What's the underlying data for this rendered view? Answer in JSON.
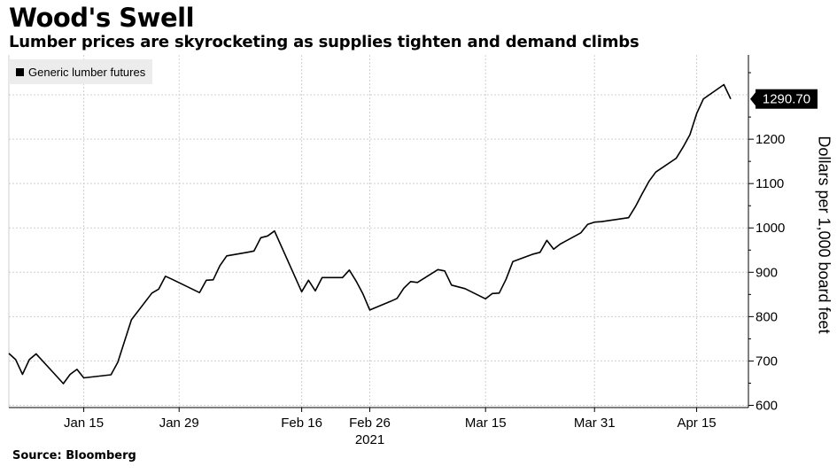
{
  "chart_data": {
    "type": "line",
    "title": "Wood's Swell",
    "subtitle": "Lumber prices are skyrocketing as supplies tighten and demand climbs",
    "source": "Source: Bloomberg",
    "ylabel": "Dollars per 1,000 board feet",
    "xlabel": "2021",
    "legend": "top-left",
    "grid": true,
    "ylim": [
      595,
      1390
    ],
    "yticks": [
      600,
      700,
      800,
      900,
      1000,
      1100,
      1200
    ],
    "xticks": [
      {
        "date": "2021-01-15",
        "label": "Jan 15"
      },
      {
        "date": "2021-01-29",
        "label": "Jan 29"
      },
      {
        "date": "2021-02-16",
        "label": "Feb 16"
      },
      {
        "date": "2021-02-26",
        "label": "Feb 26"
      },
      {
        "date": "2021-03-15",
        "label": "Mar 15"
      },
      {
        "date": "2021-03-31",
        "label": "Mar 31"
      },
      {
        "date": "2021-04-15",
        "label": "Apr 15"
      }
    ],
    "x_range": [
      "2021-01-04",
      "2021-04-20"
    ],
    "end_label": "1290.70",
    "series": [
      {
        "name": "Generic lumber futures",
        "color": "#000000",
        "points": [
          [
            "2021-01-04",
            717
          ],
          [
            "2021-01-05",
            703
          ],
          [
            "2021-01-06",
            670
          ],
          [
            "2021-01-07",
            703
          ],
          [
            "2021-01-08",
            716
          ],
          [
            "2021-01-11",
            666
          ],
          [
            "2021-01-12",
            649
          ],
          [
            "2021-01-13",
            670
          ],
          [
            "2021-01-14",
            681
          ],
          [
            "2021-01-15",
            662
          ],
          [
            "2021-01-19",
            669
          ],
          [
            "2021-01-20",
            697
          ],
          [
            "2021-01-21",
            745
          ],
          [
            "2021-01-22",
            793
          ],
          [
            "2021-01-25",
            853
          ],
          [
            "2021-01-26",
            862
          ],
          [
            "2021-01-27",
            891
          ],
          [
            "2021-01-28",
            884
          ],
          [
            "2021-02-01",
            854
          ],
          [
            "2021-02-02",
            882
          ],
          [
            "2021-02-03",
            883
          ],
          [
            "2021-02-04",
            915
          ],
          [
            "2021-02-05",
            937
          ],
          [
            "2021-02-08",
            945
          ],
          [
            "2021-02-09",
            948
          ],
          [
            "2021-02-10",
            978
          ],
          [
            "2021-02-11",
            982
          ],
          [
            "2021-02-12",
            993
          ],
          [
            "2021-02-16",
            856
          ],
          [
            "2021-02-17",
            882
          ],
          [
            "2021-02-18",
            858
          ],
          [
            "2021-02-19",
            888
          ],
          [
            "2021-02-22",
            888
          ],
          [
            "2021-02-23",
            905
          ],
          [
            "2021-02-24",
            880
          ],
          [
            "2021-02-25",
            851
          ],
          [
            "2021-02-26",
            815
          ],
          [
            "2021-03-01",
            834
          ],
          [
            "2021-03-02",
            841
          ],
          [
            "2021-03-03",
            864
          ],
          [
            "2021-03-04",
            879
          ],
          [
            "2021-03-05",
            877
          ],
          [
            "2021-03-08",
            906
          ],
          [
            "2021-03-09",
            903
          ],
          [
            "2021-03-10",
            871
          ],
          [
            "2021-03-11",
            867
          ],
          [
            "2021-03-12",
            863
          ],
          [
            "2021-03-15",
            840
          ],
          [
            "2021-03-16",
            852
          ],
          [
            "2021-03-17",
            853
          ],
          [
            "2021-03-18",
            884
          ],
          [
            "2021-03-19",
            924
          ],
          [
            "2021-03-22",
            941
          ],
          [
            "2021-03-23",
            945
          ],
          [
            "2021-03-24",
            972
          ],
          [
            "2021-03-25",
            952
          ],
          [
            "2021-03-26",
            964
          ],
          [
            "2021-03-29",
            989
          ],
          [
            "2021-03-30",
            1008
          ],
          [
            "2021-03-31",
            1013
          ],
          [
            "2021-04-01",
            1014
          ],
          [
            "2021-04-05",
            1023
          ],
          [
            "2021-04-06",
            1048
          ],
          [
            "2021-04-07",
            1077
          ],
          [
            "2021-04-08",
            1105
          ],
          [
            "2021-04-09",
            1126
          ],
          [
            "2021-04-12",
            1157
          ],
          [
            "2021-04-13",
            1182
          ],
          [
            "2021-04-14",
            1210
          ],
          [
            "2021-04-15",
            1258
          ],
          [
            "2021-04-16",
            1291
          ],
          [
            "2021-04-19",
            1323
          ],
          [
            "2021-04-20",
            1290.7
          ]
        ]
      }
    ]
  }
}
